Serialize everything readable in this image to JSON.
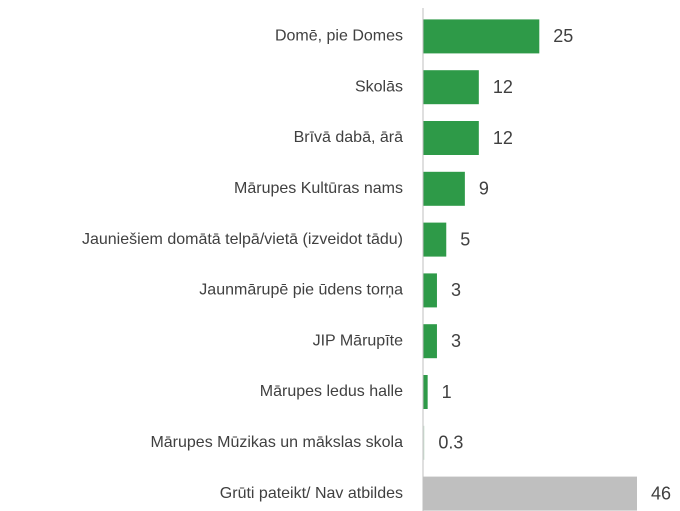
{
  "chart_data": {
    "type": "bar",
    "orientation": "horizontal",
    "categories": [
      "Domē, pie Domes",
      "Skolās",
      "Brīvā dabā, ārā",
      "Mārupes Kultūras nams",
      "Jauniešiem domātā telpā/vietā (izveidot tādu)",
      "Jaunmārupē pie ūdens torņa",
      "JIP Mārupīte",
      "Mārupes ledus halle",
      "Mārupes Mūzikas un mākslas skola",
      "Grūti pateikt/ Nav atbildes"
    ],
    "values": [
      25,
      12,
      12,
      9,
      5,
      3,
      3,
      1,
      0.3,
      46
    ],
    "colors": [
      "#2e9a48",
      "#2e9a48",
      "#2e9a48",
      "#2e9a48",
      "#2e9a48",
      "#2e9a48",
      "#2e9a48",
      "#2e9a48",
      "#cfe3d4",
      "#bfbfbf"
    ],
    "xlim": [
      0,
      46
    ]
  }
}
